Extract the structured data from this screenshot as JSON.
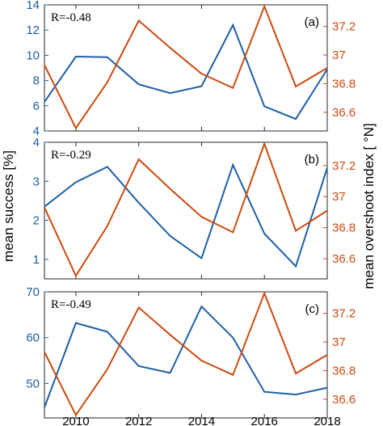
{
  "colors": {
    "blue": "#1f5fa5",
    "orange": "#cc4b10",
    "axis": "#262626"
  },
  "left_axis_label": "mean success [%]",
  "right_axis_label": "mean overshoot index [ °N]",
  "xtick_labels": [
    "2010",
    "2012",
    "2014",
    "2016",
    "2018"
  ],
  "chart_data": [
    {
      "type": "line",
      "panel_label": "(a)",
      "annotation": "R=-0.48",
      "x": [
        2009,
        2010,
        2011,
        2012,
        2013,
        2014,
        2015,
        2016,
        2017,
        2018
      ],
      "xlim": [
        2009,
        2018
      ],
      "ylim_left": [
        4,
        14
      ],
      "yticks_left": [
        "4",
        "6",
        "8",
        "10",
        "12",
        "14"
      ],
      "ylim_right": [
        36.47,
        37.35
      ],
      "yticks_right": [
        "36.6",
        "36.8",
        "37",
        "37.2"
      ],
      "series": [
        {
          "axis": "left",
          "color": "#1f5fa5",
          "values": [
            6.3,
            9.9,
            9.85,
            7.7,
            7.0,
            7.55,
            12.4,
            5.95,
            4.95,
            8.9
          ]
        },
        {
          "axis": "right",
          "color": "#cc4b10",
          "values": [
            36.93,
            36.49,
            36.81,
            37.24,
            37.05,
            36.87,
            36.77,
            37.34,
            36.78,
            36.91
          ]
        }
      ]
    },
    {
      "type": "line",
      "panel_label": "(b)",
      "annotation": "R=-0.29",
      "x": [
        2009,
        2010,
        2011,
        2012,
        2013,
        2014,
        2015,
        2016,
        2017,
        2018
      ],
      "xlim": [
        2009,
        2018
      ],
      "ylim_left": [
        0.5,
        4
      ],
      "yticks_left": [
        "1",
        "2",
        "3",
        "4"
      ],
      "ylim_right": [
        36.47,
        37.35
      ],
      "yticks_right": [
        "36.6",
        "36.8",
        "37",
        "37.2"
      ],
      "series": [
        {
          "axis": "left",
          "color": "#1f5fa5",
          "values": [
            2.35,
            2.98,
            3.37,
            2.45,
            1.6,
            1.03,
            3.42,
            1.66,
            0.82,
            3.35
          ]
        },
        {
          "axis": "right",
          "color": "#cc4b10",
          "values": [
            36.93,
            36.49,
            36.81,
            37.24,
            37.05,
            36.87,
            36.77,
            37.34,
            36.78,
            36.91
          ]
        }
      ]
    },
    {
      "type": "line",
      "panel_label": "(c)",
      "annotation": "R=-0.49",
      "x": [
        2009,
        2010,
        2011,
        2012,
        2013,
        2014,
        2015,
        2016,
        2017,
        2018
      ],
      "xlim": [
        2009,
        2018
      ],
      "ylim_left": [
        42.5,
        70
      ],
      "yticks_left": [
        "50",
        "60",
        "70"
      ],
      "ylim_right": [
        36.47,
        37.35
      ],
      "yticks_right": [
        "36.6",
        "36.8",
        "37",
        "37.2"
      ],
      "series": [
        {
          "axis": "left",
          "color": "#1f5fa5",
          "values": [
            44.8,
            63.2,
            61.3,
            53.8,
            52.3,
            66.8,
            60.0,
            48.2,
            47.6,
            49.1
          ]
        },
        {
          "axis": "right",
          "color": "#cc4b10",
          "values": [
            36.93,
            36.49,
            36.81,
            37.24,
            37.05,
            36.87,
            36.77,
            37.34,
            36.78,
            36.91
          ]
        }
      ]
    }
  ]
}
